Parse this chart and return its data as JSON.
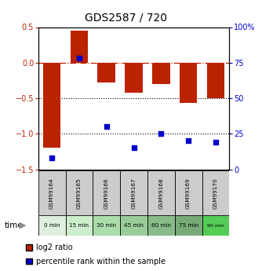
{
  "title": "GDS2587 / 720",
  "samples": [
    "GSM99164",
    "GSM99165",
    "GSM99166",
    "GSM99167",
    "GSM99168",
    "GSM99169",
    "GSM99170"
  ],
  "time_labels": [
    "0 min",
    "15 min",
    "30 min",
    "45 min",
    "60 min",
    "75 min",
    "90 min"
  ],
  "log2_ratio": [
    -1.2,
    0.45,
    -0.28,
    -0.42,
    -0.3,
    -0.57,
    -0.5
  ],
  "percentile_rank": [
    8,
    78,
    30,
    15,
    25,
    20,
    19
  ],
  "left_ylim": [
    -1.5,
    0.5
  ],
  "right_ylim": [
    0,
    100
  ],
  "left_yticks": [
    -1.5,
    -1.0,
    -0.5,
    0.0,
    0.5
  ],
  "right_yticks": [
    0,
    25,
    50,
    75,
    100
  ],
  "right_yticklabels": [
    "0",
    "25",
    "50",
    "75",
    "100%"
  ],
  "bar_color": "#bb2200",
  "dot_color": "#0000cc",
  "dotted_lines": [
    -0.5,
    -1.0
  ],
  "time_colors": [
    "#ddeedd",
    "#cceecc",
    "#aaddaa",
    "#99cc99",
    "#88bb88",
    "#77aa77",
    "#55cc55"
  ],
  "sample_bg_color": "#cccccc",
  "bar_width": 0.65,
  "fig_width": 3.48,
  "fig_height": 3.45,
  "dpi": 100
}
